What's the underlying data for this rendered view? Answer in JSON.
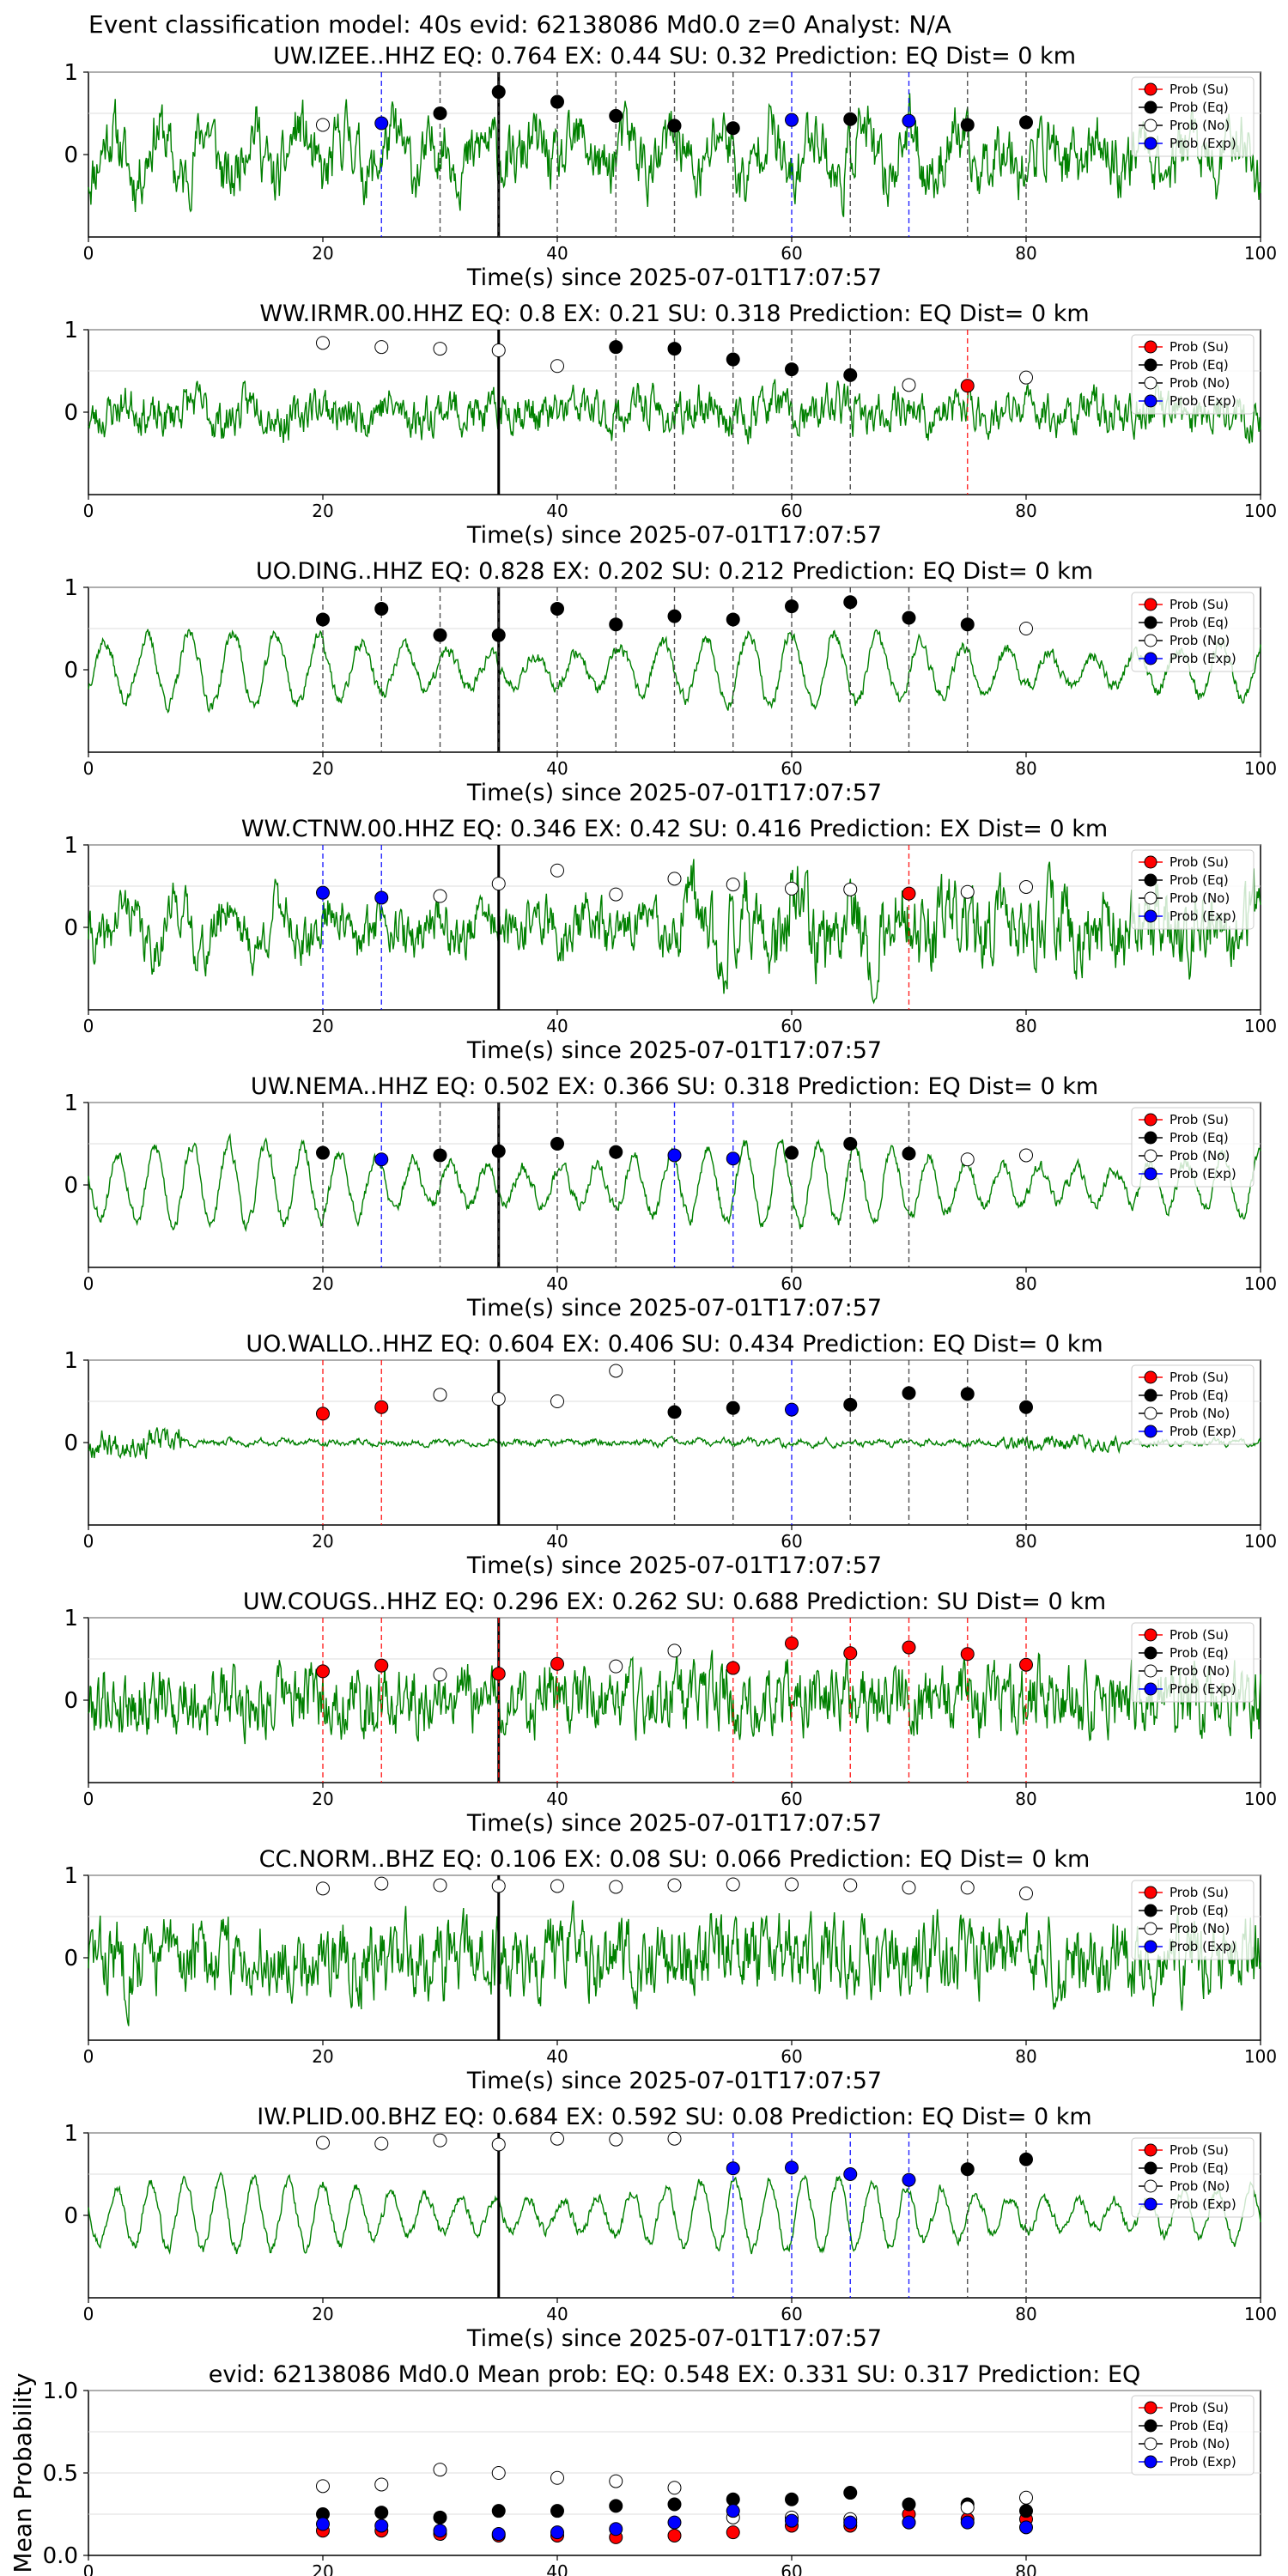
{
  "figure_title": "Event classification model: 40s evid: 62138086 Md0.0 z=0 Analyst: N/A",
  "legend": [
    "Prob (Su)",
    "Prob (Eq)",
    "Prob (No)",
    "Prob (Exp)"
  ],
  "colors": {
    "su": "#ff0000",
    "eq": "#000000",
    "no": "#ffffff",
    "exp": "#0000ff",
    "trace": "#008000",
    "vline": "#000000",
    "grid": "#dddddd"
  },
  "chart_data": [
    {
      "type": "line",
      "station": "UW.IZEE..HHZ",
      "title": "UW.IZEE..HHZ   EQ: 0.764  EX: 0.44  SU: 0.32   Prediction: EQ    Dist= 0 km",
      "xlabel": "Time(s) since 2025-07-01T17:07:57",
      "xlim": [
        0,
        100
      ],
      "ylim": [
        -1,
        1
      ],
      "xticks": [
        "0",
        "20",
        "40",
        "60",
        "80",
        "100"
      ],
      "yticks": [
        "0",
        "1"
      ],
      "arrival": 35,
      "seed": 11,
      "noise": 0.45,
      "wave": 0.35,
      "freq": 0.55,
      "envelope": "flat",
      "windows": [
        {
          "t": 20,
          "cls": "no",
          "p": 0.36
        },
        {
          "t": 25,
          "cls": "exp",
          "p": 0.38
        },
        {
          "t": 30,
          "cls": "eq",
          "p": 0.5
        },
        {
          "t": 35,
          "cls": "eq",
          "p": 0.76
        },
        {
          "t": 40,
          "cls": "eq",
          "p": 0.64
        },
        {
          "t": 45,
          "cls": "eq",
          "p": 0.47
        },
        {
          "t": 50,
          "cls": "eq",
          "p": 0.35
        },
        {
          "t": 55,
          "cls": "eq",
          "p": 0.32
        },
        {
          "t": 60,
          "cls": "exp",
          "p": 0.42
        },
        {
          "t": 65,
          "cls": "eq",
          "p": 0.43
        },
        {
          "t": 70,
          "cls": "exp",
          "p": 0.41
        },
        {
          "t": 75,
          "cls": "eq",
          "p": 0.36
        },
        {
          "t": 80,
          "cls": "eq",
          "p": 0.39
        }
      ]
    },
    {
      "type": "line",
      "station": "WW.IRMR.00.HHZ",
      "title": "WW.IRMR.00.HHZ   EQ: 0.8  EX: 0.21  SU: 0.318   Prediction: EQ    Dist= 0 km",
      "xlabel": "Time(s) since 2025-07-01T17:07:57",
      "xlim": [
        0,
        100
      ],
      "ylim": [
        -1,
        1
      ],
      "xticks": [
        "0",
        "20",
        "40",
        "60",
        "80",
        "100"
      ],
      "yticks": [
        "0",
        "1"
      ],
      "arrival": 35,
      "seed": 23,
      "noise": 0.3,
      "wave": 0.12,
      "freq": 0.4,
      "envelope": "flat",
      "windows": [
        {
          "t": 20,
          "cls": "no",
          "p": 0.84
        },
        {
          "t": 25,
          "cls": "no",
          "p": 0.79
        },
        {
          "t": 30,
          "cls": "no",
          "p": 0.77
        },
        {
          "t": 35,
          "cls": "no",
          "p": 0.75
        },
        {
          "t": 40,
          "cls": "no",
          "p": 0.56
        },
        {
          "t": 45,
          "cls": "eq",
          "p": 0.79
        },
        {
          "t": 50,
          "cls": "eq",
          "p": 0.77
        },
        {
          "t": 55,
          "cls": "eq",
          "p": 0.64
        },
        {
          "t": 60,
          "cls": "eq",
          "p": 0.52
        },
        {
          "t": 65,
          "cls": "eq",
          "p": 0.45
        },
        {
          "t": 70,
          "cls": "no",
          "p": 0.33
        },
        {
          "t": 75,
          "cls": "su",
          "p": 0.32
        },
        {
          "t": 80,
          "cls": "no",
          "p": 0.42
        }
      ]
    },
    {
      "type": "line",
      "station": "UO.DING..HHZ",
      "title": "UO.DING..HHZ   EQ: 0.828  EX: 0.202  SU: 0.212   Prediction: EQ    Dist= 0 km",
      "xlabel": "Time(s) since 2025-07-01T17:07:57",
      "xlim": [
        0,
        100
      ],
      "ylim": [
        -1,
        1
      ],
      "xticks": [
        "0",
        "20",
        "40",
        "60",
        "80",
        "100"
      ],
      "yticks": [
        "0",
        "1"
      ],
      "arrival": 35,
      "seed": 37,
      "noise": 0.1,
      "wave": 0.45,
      "freq": 0.6,
      "envelope": "flat",
      "windows": [
        {
          "t": 20,
          "cls": "eq",
          "p": 0.61
        },
        {
          "t": 25,
          "cls": "eq",
          "p": 0.74
        },
        {
          "t": 30,
          "cls": "eq",
          "p": 0.42
        },
        {
          "t": 35,
          "cls": "eq",
          "p": 0.42
        },
        {
          "t": 40,
          "cls": "eq",
          "p": 0.74
        },
        {
          "t": 45,
          "cls": "eq",
          "p": 0.55
        },
        {
          "t": 50,
          "cls": "eq",
          "p": 0.65
        },
        {
          "t": 55,
          "cls": "eq",
          "p": 0.61
        },
        {
          "t": 60,
          "cls": "eq",
          "p": 0.77
        },
        {
          "t": 65,
          "cls": "eq",
          "p": 0.82
        },
        {
          "t": 70,
          "cls": "eq",
          "p": 0.63
        },
        {
          "t": 75,
          "cls": "eq",
          "p": 0.55
        },
        {
          "t": 80,
          "cls": "no",
          "p": 0.5
        }
      ]
    },
    {
      "type": "line",
      "station": "WW.CTNW.00.HHZ",
      "title": "WW.CTNW.00.HHZ   EQ: 0.346  EX: 0.42  SU: 0.416   Prediction: EX    Dist= 0 km",
      "xlabel": "Time(s) since 2025-07-01T17:07:57",
      "xlim": [
        0,
        100
      ],
      "ylim": [
        -1,
        1
      ],
      "xticks": [
        "0",
        "20",
        "40",
        "60",
        "80",
        "100"
      ],
      "yticks": [
        "0",
        "1"
      ],
      "arrival": 35,
      "seed": 41,
      "noise": 0.4,
      "wave": 0.3,
      "freq": 0.5,
      "envelope": "late",
      "windows": [
        {
          "t": 20,
          "cls": "exp",
          "p": 0.42
        },
        {
          "t": 25,
          "cls": "exp",
          "p": 0.36
        },
        {
          "t": 30,
          "cls": "no",
          "p": 0.38
        },
        {
          "t": 35,
          "cls": "no",
          "p": 0.53
        },
        {
          "t": 40,
          "cls": "no",
          "p": 0.69
        },
        {
          "t": 45,
          "cls": "no",
          "p": 0.4
        },
        {
          "t": 50,
          "cls": "no",
          "p": 0.59
        },
        {
          "t": 55,
          "cls": "no",
          "p": 0.52
        },
        {
          "t": 60,
          "cls": "no",
          "p": 0.47
        },
        {
          "t": 65,
          "cls": "no",
          "p": 0.46
        },
        {
          "t": 70,
          "cls": "su",
          "p": 0.41
        },
        {
          "t": 75,
          "cls": "no",
          "p": 0.43
        },
        {
          "t": 80,
          "cls": "no",
          "p": 0.49
        }
      ]
    },
    {
      "type": "line",
      "station": "UW.NEMA..HHZ",
      "title": "UW.NEMA..HHZ   EQ: 0.502  EX: 0.366  SU: 0.318   Prediction: EQ    Dist= 0 km",
      "xlabel": "Time(s) since 2025-07-01T17:07:57",
      "xlim": [
        0,
        100
      ],
      "ylim": [
        -1,
        1
      ],
      "xticks": [
        "0",
        "20",
        "40",
        "60",
        "80",
        "100"
      ],
      "yticks": [
        "0",
        "1"
      ],
      "arrival": 35,
      "seed": 53,
      "noise": 0.1,
      "wave": 0.5,
      "freq": 0.7,
      "envelope": "flat",
      "windows": [
        {
          "t": 20,
          "cls": "eq",
          "p": 0.39
        },
        {
          "t": 25,
          "cls": "exp",
          "p": 0.31
        },
        {
          "t": 30,
          "cls": "eq",
          "p": 0.36
        },
        {
          "t": 35,
          "cls": "eq",
          "p": 0.41
        },
        {
          "t": 40,
          "cls": "eq",
          "p": 0.5
        },
        {
          "t": 45,
          "cls": "eq",
          "p": 0.4
        },
        {
          "t": 50,
          "cls": "exp",
          "p": 0.36
        },
        {
          "t": 55,
          "cls": "exp",
          "p": 0.32
        },
        {
          "t": 60,
          "cls": "eq",
          "p": 0.39
        },
        {
          "t": 65,
          "cls": "eq",
          "p": 0.5
        },
        {
          "t": 70,
          "cls": "eq",
          "p": 0.38
        },
        {
          "t": 75,
          "cls": "no",
          "p": 0.31
        },
        {
          "t": 80,
          "cls": "no",
          "p": 0.36
        }
      ]
    },
    {
      "type": "line",
      "station": "UO.WALLO..HHZ",
      "title": "UO.WALLO..HHZ   EQ: 0.604  EX: 0.406  SU: 0.434   Prediction: EQ    Dist= 0 km",
      "xlabel": "Time(s) since 2025-07-01T17:07:57",
      "xlim": [
        0,
        100
      ],
      "ylim": [
        -1,
        1
      ],
      "xticks": [
        "0",
        "20",
        "40",
        "60",
        "80",
        "100"
      ],
      "yticks": [
        "0",
        "1"
      ],
      "arrival": 35,
      "seed": 67,
      "noise": 0.12,
      "wave": 0.03,
      "freq": 1.0,
      "envelope": "early",
      "windows": [
        {
          "t": 20,
          "cls": "su",
          "p": 0.35
        },
        {
          "t": 25,
          "cls": "su",
          "p": 0.43
        },
        {
          "t": 30,
          "cls": "no",
          "p": 0.58
        },
        {
          "t": 35,
          "cls": "no",
          "p": 0.53
        },
        {
          "t": 40,
          "cls": "no",
          "p": 0.5
        },
        {
          "t": 45,
          "cls": "no",
          "p": 0.87
        },
        {
          "t": 50,
          "cls": "eq",
          "p": 0.37
        },
        {
          "t": 55,
          "cls": "eq",
          "p": 0.42
        },
        {
          "t": 60,
          "cls": "exp",
          "p": 0.4
        },
        {
          "t": 65,
          "cls": "eq",
          "p": 0.46
        },
        {
          "t": 70,
          "cls": "eq",
          "p": 0.6
        },
        {
          "t": 75,
          "cls": "eq",
          "p": 0.59
        },
        {
          "t": 80,
          "cls": "eq",
          "p": 0.43
        }
      ]
    },
    {
      "type": "line",
      "station": "UW.COUGS..HHZ",
      "title": "UW.COUGS..HHZ   EQ: 0.296  EX: 0.262  SU: 0.688   Prediction: SU    Dist= 0 km",
      "xlabel": "Time(s) since 2025-07-01T17:07:57",
      "xlim": [
        0,
        100
      ],
      "ylim": [
        -1,
        1
      ],
      "xticks": [
        "0",
        "20",
        "40",
        "60",
        "80",
        "100"
      ],
      "yticks": [
        "0",
        "1"
      ],
      "arrival": 35,
      "seed": 79,
      "noise": 0.5,
      "wave": 0.03,
      "freq": 1.0,
      "envelope": "flat",
      "windows": [
        {
          "t": 20,
          "cls": "su",
          "p": 0.35
        },
        {
          "t": 25,
          "cls": "su",
          "p": 0.42
        },
        {
          "t": 30,
          "cls": "no",
          "p": 0.31
        },
        {
          "t": 35,
          "cls": "su",
          "p": 0.32
        },
        {
          "t": 40,
          "cls": "su",
          "p": 0.44
        },
        {
          "t": 45,
          "cls": "no",
          "p": 0.41
        },
        {
          "t": 50,
          "cls": "no",
          "p": 0.6
        },
        {
          "t": 55,
          "cls": "su",
          "p": 0.39
        },
        {
          "t": 60,
          "cls": "su",
          "p": 0.69
        },
        {
          "t": 65,
          "cls": "su",
          "p": 0.57
        },
        {
          "t": 70,
          "cls": "su",
          "p": 0.64
        },
        {
          "t": 75,
          "cls": "su",
          "p": 0.56
        },
        {
          "t": 80,
          "cls": "su",
          "p": 0.43
        }
      ]
    },
    {
      "type": "line",
      "station": "CC.NORM..BHZ",
      "title": "CC.NORM..BHZ   EQ: 0.106  EX: 0.08  SU: 0.066   Prediction: EQ    Dist= 0 km",
      "xlabel": "Time(s) since 2025-07-01T17:07:57",
      "xlim": [
        0,
        100
      ],
      "ylim": [
        -1,
        1
      ],
      "xticks": [
        "0",
        "20",
        "40",
        "60",
        "80",
        "100"
      ],
      "yticks": [
        "0",
        "1"
      ],
      "arrival": 35,
      "seed": 83,
      "noise": 0.55,
      "wave": 0.05,
      "freq": 1.0,
      "envelope": "flat",
      "windows": [
        {
          "t": 20,
          "cls": "no",
          "p": 0.84
        },
        {
          "t": 25,
          "cls": "no",
          "p": 0.9
        },
        {
          "t": 30,
          "cls": "no",
          "p": 0.88
        },
        {
          "t": 35,
          "cls": "no",
          "p": 0.87
        },
        {
          "t": 40,
          "cls": "no",
          "p": 0.87
        },
        {
          "t": 45,
          "cls": "no",
          "p": 0.86
        },
        {
          "t": 50,
          "cls": "no",
          "p": 0.88
        },
        {
          "t": 55,
          "cls": "no",
          "p": 0.89
        },
        {
          "t": 60,
          "cls": "no",
          "p": 0.89
        },
        {
          "t": 65,
          "cls": "no",
          "p": 0.88
        },
        {
          "t": 70,
          "cls": "no",
          "p": 0.85
        },
        {
          "t": 75,
          "cls": "no",
          "p": 0.85
        },
        {
          "t": 80,
          "cls": "no",
          "p": 0.78
        }
      ]
    },
    {
      "type": "line",
      "station": "IW.PLID.00.BHZ",
      "title": "IW.PLID.00.BHZ   EQ: 0.684  EX: 0.592  SU: 0.08   Prediction: EQ    Dist= 0 km",
      "xlabel": "Time(s) since 2025-07-01T17:07:57",
      "xlim": [
        0,
        100
      ],
      "ylim": [
        -1,
        1
      ],
      "xticks": [
        "0",
        "20",
        "40",
        "60",
        "80",
        "100"
      ],
      "yticks": [
        "0",
        "1"
      ],
      "arrival": 35,
      "seed": 97,
      "noise": 0.08,
      "wave": 0.45,
      "freq": 0.75,
      "envelope": "flat",
      "windows": [
        {
          "t": 20,
          "cls": "no",
          "p": 0.88
        },
        {
          "t": 25,
          "cls": "no",
          "p": 0.87
        },
        {
          "t": 30,
          "cls": "no",
          "p": 0.91
        },
        {
          "t": 35,
          "cls": "no",
          "p": 0.86
        },
        {
          "t": 40,
          "cls": "no",
          "p": 0.93
        },
        {
          "t": 45,
          "cls": "no",
          "p": 0.92
        },
        {
          "t": 50,
          "cls": "no",
          "p": 0.93
        },
        {
          "t": 55,
          "cls": "exp",
          "p": 0.57
        },
        {
          "t": 60,
          "cls": "exp",
          "p": 0.58
        },
        {
          "t": 65,
          "cls": "exp",
          "p": 0.5
        },
        {
          "t": 70,
          "cls": "exp",
          "p": 0.43
        },
        {
          "t": 75,
          "cls": "eq",
          "p": 0.56
        },
        {
          "t": 80,
          "cls": "eq",
          "p": 0.68
        }
      ]
    },
    {
      "type": "scatter",
      "title": "evid: 62138086  Md0.0   Mean prob:    EQ: 0.548  EX: 0.331  SU: 0.317   Prediction: EQ",
      "ylabel": "Mean Probability",
      "xlim": [
        0,
        100
      ],
      "ylim": [
        0,
        1
      ],
      "xticks": [
        "0",
        "20",
        "40",
        "60",
        "80"
      ],
      "yticks": [
        "0.0",
        "0.5",
        "1.0"
      ],
      "x": [
        20,
        25,
        30,
        35,
        40,
        45,
        50,
        55,
        60,
        65,
        70,
        75,
        80
      ],
      "series": [
        {
          "name": "Prob (Su)",
          "cls": "su",
          "values": [
            0.15,
            0.15,
            0.13,
            0.12,
            0.12,
            0.11,
            0.12,
            0.14,
            0.18,
            0.18,
            0.25,
            0.22,
            0.22
          ]
        },
        {
          "name": "Prob (Eq)",
          "cls": "eq",
          "values": [
            0.25,
            0.26,
            0.23,
            0.27,
            0.27,
            0.3,
            0.31,
            0.34,
            0.34,
            0.38,
            0.31,
            0.31,
            0.27
          ]
        },
        {
          "name": "Prob (No)",
          "cls": "no",
          "values": [
            0.42,
            0.43,
            0.52,
            0.5,
            0.47,
            0.45,
            0.41,
            0.23,
            0.23,
            0.22,
            0.2,
            0.29,
            0.35
          ]
        },
        {
          "name": "Prob (Exp)",
          "cls": "exp",
          "values": [
            0.19,
            0.18,
            0.15,
            0.13,
            0.14,
            0.16,
            0.2,
            0.27,
            0.21,
            0.2,
            0.2,
            0.2,
            0.17
          ]
        }
      ]
    }
  ]
}
